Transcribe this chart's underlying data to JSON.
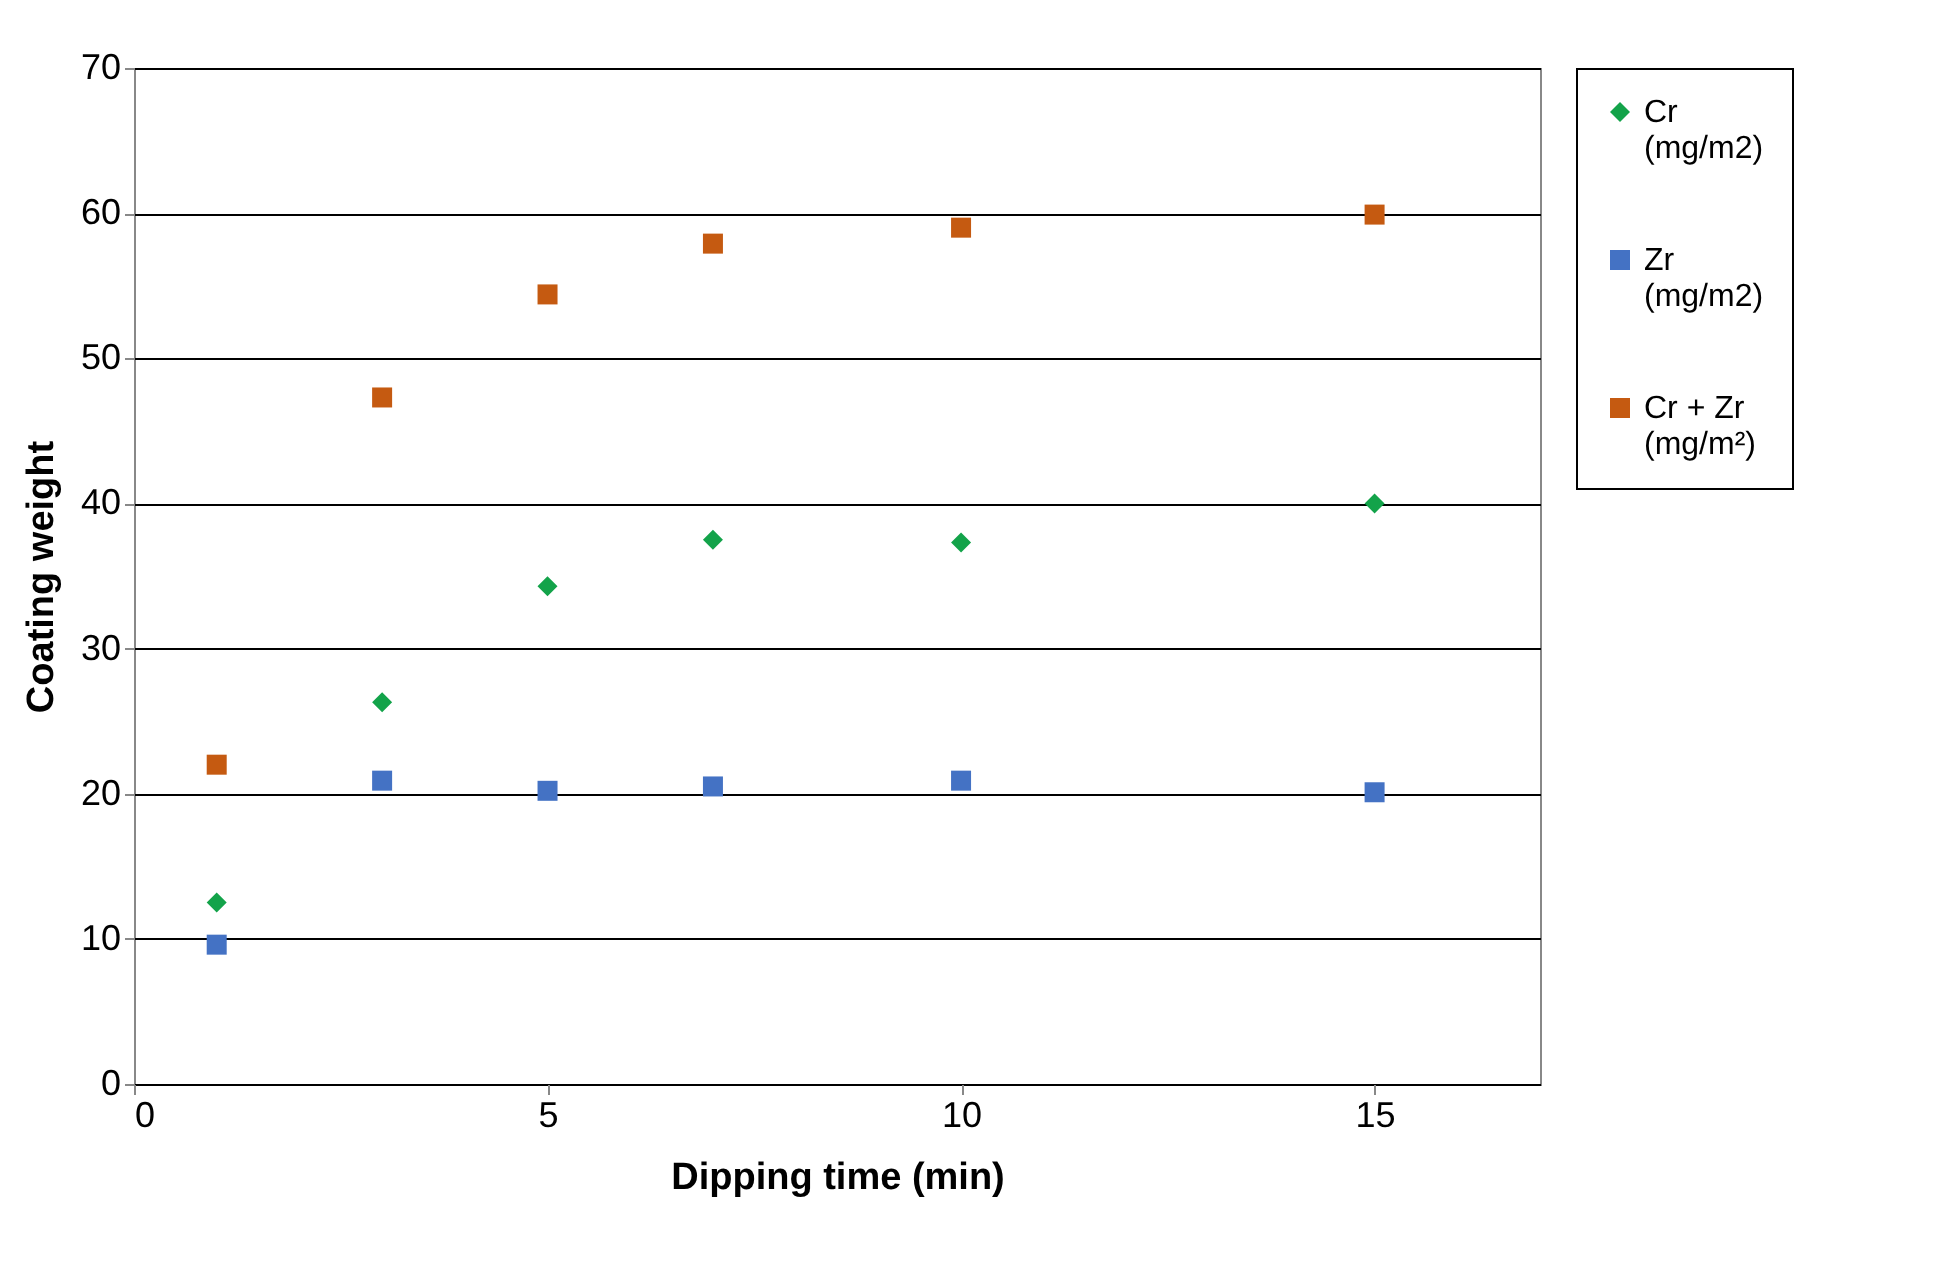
{
  "chart_data": {
    "type": "scatter",
    "xlabel": "Dipping time (min)",
    "ylabel": "Coating weight",
    "x": [
      1,
      3,
      5,
      7,
      10,
      15
    ],
    "series": [
      {
        "name": "Cr (mg/m2)",
        "color": "#13a34a",
        "marker": "diamond",
        "values": [
          12.5,
          26.3,
          34.3,
          37.5,
          37.3,
          40.0
        ]
      },
      {
        "name": "Zr (mg/m2)",
        "color": "#4472c4",
        "marker": "square",
        "values": [
          9.6,
          20.9,
          20.2,
          20.5,
          20.9,
          20.1
        ]
      },
      {
        "name": "Cr + Zr (mg/m²)",
        "color": "#c55a11",
        "marker": "square",
        "values": [
          22.0,
          47.3,
          54.4,
          57.9,
          59.0,
          59.9
        ]
      }
    ],
    "xlim": [
      0,
      17
    ],
    "xticks": [
      0,
      5,
      10,
      15
    ],
    "ylim": [
      0,
      70
    ],
    "yticks": [
      0,
      10,
      20,
      30,
      40,
      50,
      60,
      70
    ],
    "grid": "y",
    "legend": "right"
  }
}
